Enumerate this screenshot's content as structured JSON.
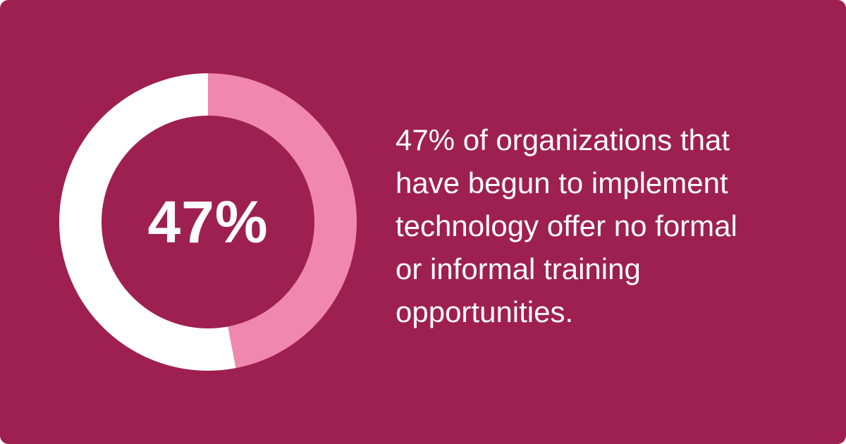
{
  "chart_data": {
    "type": "pie",
    "style": "donut",
    "values": [
      47,
      53
    ],
    "center_label": "47%",
    "colors": {
      "highlighted": "#f088ad",
      "remainder": "#ffffff",
      "background": "#9e2050"
    }
  },
  "caption": {
    "lines": [
      "47% of organizations that",
      "have begun to implement",
      "technology offer no formal",
      "or informal training",
      "opportunities."
    ]
  }
}
